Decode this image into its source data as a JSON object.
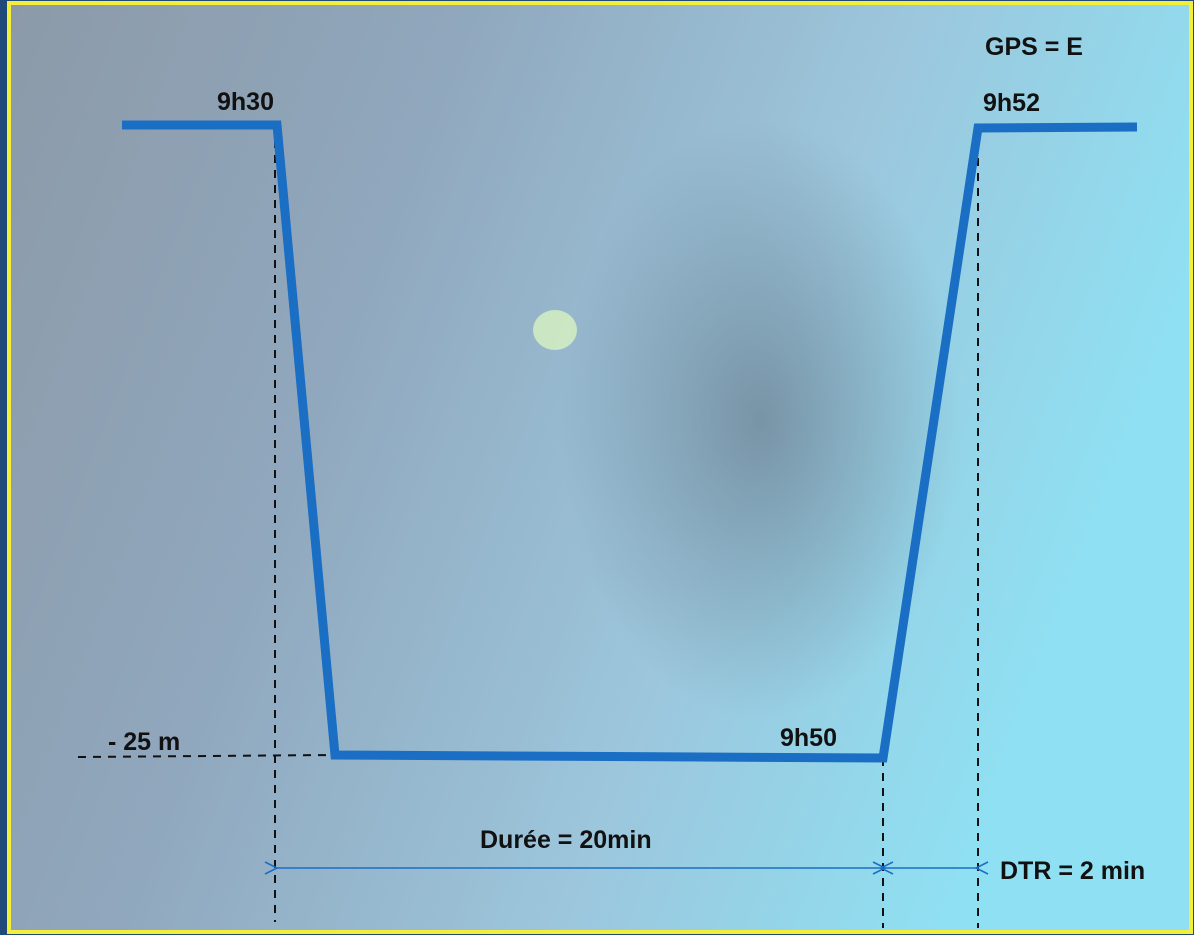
{
  "gps_label": "GPS = E",
  "start_time": "9h30",
  "surface_time": "9h52",
  "bottom_end_time": "9h50",
  "depth_label": "- 25 m",
  "duration_label": "Durée = 20min",
  "dtr_label": "DTR = 2 min"
}
